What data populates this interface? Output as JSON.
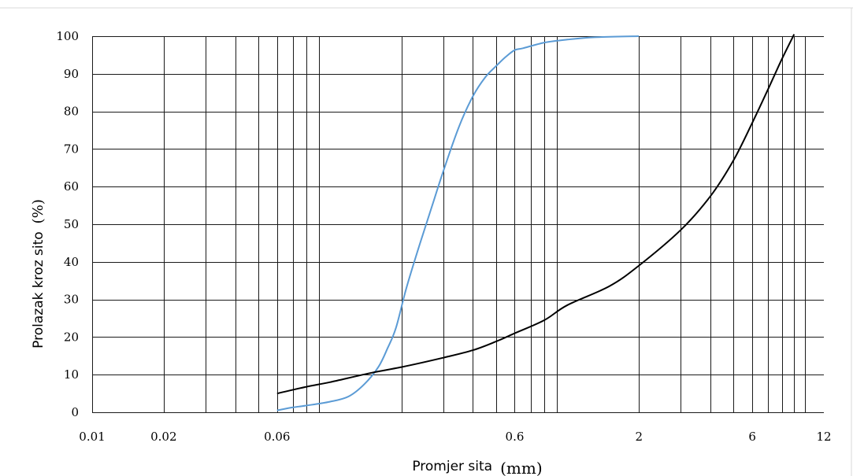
{
  "chart_data": {
    "type": "line",
    "xscale": "log",
    "xlabel": "Promjer sita",
    "xlabel_unit": "(mm)",
    "ylabel": "Prolazak kroz sito",
    "ylabel_unit": "(%)",
    "xlim": [
      0.01,
      12
    ],
    "ylim": [
      0,
      100
    ],
    "grid": true,
    "x_tick_labels": [
      "0.01",
      "0.02",
      "0.06",
      "0.6",
      "2",
      "6",
      "12"
    ],
    "x_tick_values": [
      0.01,
      0.02,
      0.06,
      0.6,
      2,
      6,
      12
    ],
    "y_tick_labels": [
      "0",
      "10",
      "20",
      "30",
      "40",
      "50",
      "60",
      "70",
      "80",
      "90",
      "100"
    ],
    "y_tick_values": [
      0,
      10,
      20,
      30,
      40,
      50,
      60,
      70,
      80,
      90,
      100
    ],
    "x_gridlines": [
      0.01,
      0.02,
      0.03,
      0.04,
      0.05,
      0.06,
      0.07,
      0.08,
      0.09,
      0.2,
      0.3,
      0.4,
      0.5,
      0.6,
      0.7,
      0.8,
      0.9,
      2,
      3,
      4,
      5,
      6,
      7,
      8,
      9,
      10
    ],
    "series": [
      {
        "color": "#5b9bd5",
        "x": [
          0.06,
          0.07,
          0.08,
          0.1,
          0.12,
          0.14,
          0.16,
          0.175,
          0.19,
          0.21,
          0.24,
          0.27,
          0.3,
          0.35,
          0.4,
          0.45,
          0.5,
          0.55,
          0.6,
          0.65,
          0.8,
          1.0,
          1.3,
          2.0
        ],
        "y": [
          0.5,
          1.3,
          1.8,
          2.8,
          4.2,
          7.5,
          12,
          17,
          22.5,
          33,
          45,
          55,
          64,
          76,
          84,
          89,
          92,
          94.5,
          96.3,
          96.8,
          98.3,
          99.1,
          99.7,
          100
        ]
      },
      {
        "color": "#000000",
        "x": [
          0.06,
          0.08,
          0.1,
          0.15,
          0.2,
          0.3,
          0.4,
          0.5,
          0.6,
          0.8,
          1.0,
          1.5,
          2.0,
          3.0,
          4.0,
          5.0,
          6.0,
          7.0,
          8.0,
          9.0
        ],
        "y": [
          5,
          6.8,
          8,
          10.5,
          12,
          14.5,
          16.5,
          18.8,
          21,
          24.5,
          28.5,
          33.5,
          39,
          48.5,
          57.5,
          67,
          77,
          86,
          94,
          100.5
        ]
      }
    ]
  }
}
